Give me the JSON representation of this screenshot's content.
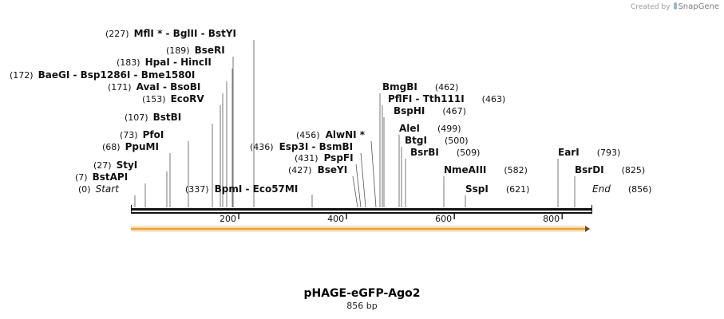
{
  "credit": {
    "created_by": "Created by",
    "brand": "SnapGene"
  },
  "map": {
    "name": "pHAGE-eGFP-Ago2",
    "length_text": "856 bp",
    "length": 856,
    "feature_color": "#e8a33a",
    "ticks": [
      {
        "pos": 200,
        "label": "200"
      },
      {
        "pos": 400,
        "label": "400"
      },
      {
        "pos": 600,
        "label": "600"
      },
      {
        "pos": 800,
        "label": "800"
      }
    ],
    "left_labels": [
      {
        "pos_text": "(0)",
        "name": "Start",
        "italic": true,
        "site": 0
      },
      {
        "pos_text": "(7)",
        "name": "BstAPI",
        "site": 7
      },
      {
        "pos_text": "(27)",
        "name": "StyI",
        "site": 27
      },
      {
        "pos_text": "(68)",
        "name": "PpuMI",
        "site": 68
      },
      {
        "pos_text": "(73)",
        "name": "PfoI",
        "site": 73
      },
      {
        "pos_text": "(107)",
        "name": "BstBI",
        "site": 107
      },
      {
        "pos_text": "(153)",
        "name": "EcoRV",
        "site": 153
      },
      {
        "pos_text": "(171)",
        "name": "AvaI  - BsoBI",
        "site": 171
      },
      {
        "pos_text": "(172)",
        "name": "BaeGI  - Bsp1286I  - Bme1580I",
        "site": 172
      },
      {
        "pos_text": "(183)",
        "name": "HpaI  - HincII",
        "site": 183
      },
      {
        "pos_text": "(189)",
        "name": "BseRI",
        "site": 189
      },
      {
        "pos_text": "(227)",
        "name": "MflI *  - BglII  - BstYI",
        "site": 227
      }
    ],
    "inline_labels": [
      {
        "pos_text": "(337)",
        "name": "BpmI  - Eco57MI",
        "site": 337
      }
    ],
    "middle_labels": [
      {
        "pos_text": "(427)",
        "name": "BseYI",
        "site": 427
      },
      {
        "pos_text": "(431)",
        "name": "PspFI",
        "site": 431
      },
      {
        "pos_text": "(436)",
        "name": "Esp3I  - BsmBI",
        "site": 436
      },
      {
        "pos_text": "(456)",
        "name": "AlwNI *",
        "site": 456
      }
    ],
    "right_labels": [
      {
        "name": "BmgBI",
        "pos_text": "(462)",
        "site": 462
      },
      {
        "name": "PflFI  - Tth111I",
        "pos_text": "(463)",
        "site": 463
      },
      {
        "name": "BspHI",
        "pos_text": "(467)",
        "site": 467
      },
      {
        "name": "AleI",
        "pos_text": "(499)",
        "site": 499
      },
      {
        "name": "BtgI",
        "pos_text": "(500)",
        "site": 500
      },
      {
        "name": "BsrBI",
        "pos_text": "(509)",
        "site": 509
      },
      {
        "name": "NmeAIII",
        "pos_text": "(582)",
        "site": 582
      },
      {
        "name": "SspI",
        "pos_text": "(621)",
        "site": 621
      },
      {
        "name": "EarI",
        "pos_text": "(793)",
        "site": 793
      },
      {
        "name": "BsrDI",
        "pos_text": "(825)",
        "site": 825
      },
      {
        "name": "End",
        "italic": true,
        "pos_text": "(856)",
        "site": 856
      }
    ]
  }
}
